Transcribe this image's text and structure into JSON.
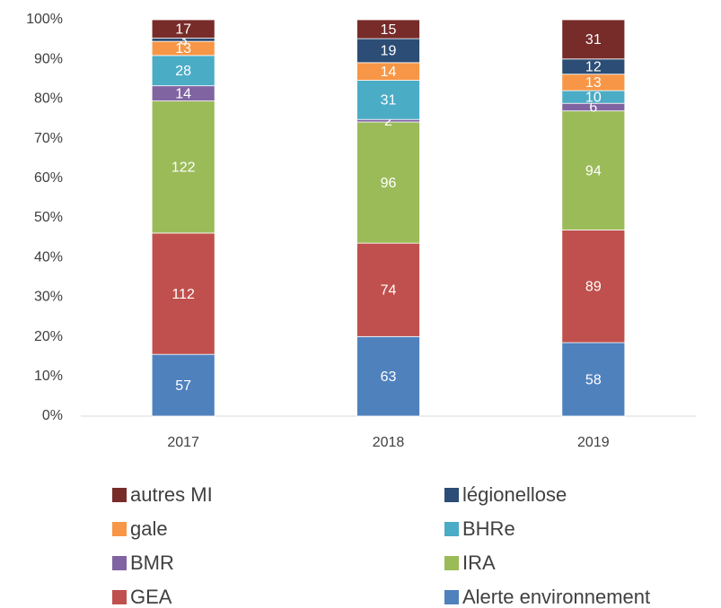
{
  "chart_data": {
    "type": "bar",
    "stack": "percent",
    "categories": [
      "2017",
      "2018",
      "2019"
    ],
    "series": [
      {
        "name": "Alerte environnement",
        "color": "#4f81bd",
        "values": [
          57,
          63,
          58
        ]
      },
      {
        "name": "GEA",
        "color": "#c0504d",
        "values": [
          112,
          74,
          89
        ]
      },
      {
        "name": "IRA",
        "color": "#9bbb59",
        "values": [
          122,
          96,
          94
        ]
      },
      {
        "name": "BMR",
        "color": "#8064a2",
        "values": [
          14,
          2,
          6
        ]
      },
      {
        "name": "BHRe",
        "color": "#4bacc6",
        "values": [
          28,
          31,
          10
        ]
      },
      {
        "name": "gale",
        "color": "#f79646",
        "values": [
          13,
          14,
          13
        ]
      },
      {
        "name": "légionellose",
        "color": "#2c4d75",
        "values": [
          3,
          19,
          12
        ]
      },
      {
        "name": "autres MI",
        "color": "#772c2a",
        "values": [
          17,
          15,
          31
        ]
      }
    ],
    "ylim": [
      0,
      100
    ],
    "yticks": [
      {
        "value": 0,
        "label": "0%"
      },
      {
        "value": 10,
        "label": "10%"
      },
      {
        "value": 20,
        "label": "20%"
      },
      {
        "value": 30,
        "label": "30%"
      },
      {
        "value": 40,
        "label": "40%"
      },
      {
        "value": 50,
        "label": "50%"
      },
      {
        "value": 60,
        "label": "60%"
      },
      {
        "value": 70,
        "label": "70%"
      },
      {
        "value": 80,
        "label": "80%"
      },
      {
        "value": 90,
        "label": "90%"
      },
      {
        "value": 100,
        "label": "100%"
      }
    ],
    "grid": false,
    "legend": "bottom"
  }
}
